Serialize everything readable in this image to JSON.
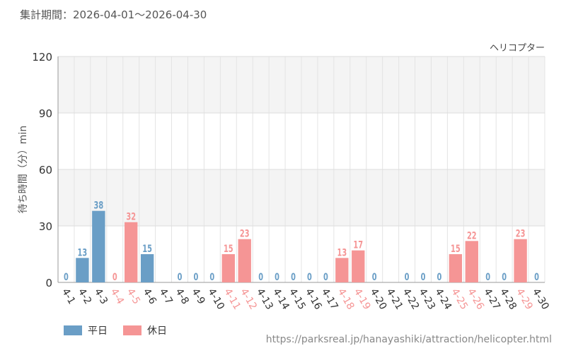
{
  "header": {
    "title": "集計期間：2026-04-01～2026-04-30"
  },
  "footer": {
    "source": "https://parksreal.jp/hanayashiki/attraction/helicopter.html"
  },
  "colors": {
    "weekday": "#6a9ec6",
    "holiday": "#f59595",
    "grid": "#e4e4e4",
    "band": "#f4f4f4",
    "axis_text": "#333333"
  },
  "legend": [
    {
      "label": "平日",
      "key": "weekday"
    },
    {
      "label": "休日",
      "key": "holiday"
    }
  ],
  "chart_data": {
    "type": "bar",
    "title": "ヘリコプター",
    "ylabel": "待ち時間（分）min",
    "xlabel": "",
    "ylim": [
      0,
      120
    ],
    "yticks": [
      0,
      30,
      60,
      90,
      120
    ],
    "grid": true,
    "legend_position": "bottom-left",
    "categories": [
      "4-1",
      "4-2",
      "4-3",
      "4-4",
      "4-5",
      "4-6",
      "4-7",
      "4-8",
      "4-9",
      "4-10",
      "4-11",
      "4-12",
      "4-13",
      "4-14",
      "4-15",
      "4-16",
      "4-17",
      "4-18",
      "4-19",
      "4-20",
      "4-21",
      "4-22",
      "4-23",
      "4-24",
      "4-25",
      "4-26",
      "4-27",
      "4-28",
      "4-29",
      "4-30"
    ],
    "values": [
      0,
      13,
      38,
      0,
      32,
      15,
      null,
      0,
      0,
      0,
      15,
      23,
      0,
      0,
      0,
      0,
      0,
      13,
      17,
      0,
      null,
      0,
      0,
      0,
      15,
      22,
      0,
      0,
      23,
      0
    ],
    "day_type": [
      "weekday",
      "weekday",
      "weekday",
      "holiday",
      "holiday",
      "weekday",
      "weekday",
      "weekday",
      "weekday",
      "weekday",
      "holiday",
      "holiday",
      "weekday",
      "weekday",
      "weekday",
      "weekday",
      "weekday",
      "holiday",
      "holiday",
      "weekday",
      "weekday",
      "weekday",
      "weekday",
      "weekday",
      "holiday",
      "holiday",
      "weekday",
      "weekday",
      "holiday",
      "weekday"
    ]
  }
}
